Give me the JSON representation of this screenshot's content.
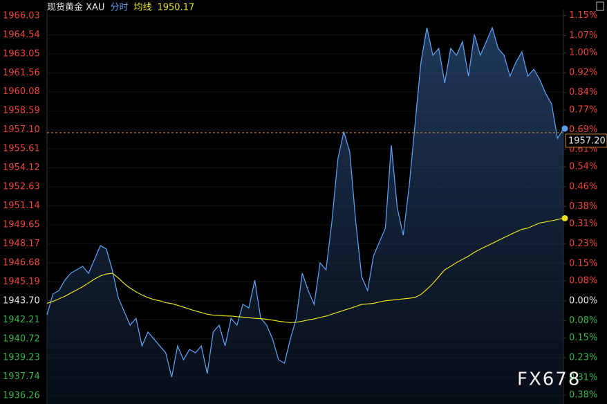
{
  "chart_data": {
    "type": "line",
    "title": "现货黄金 XAU",
    "series": [
      {
        "name": "分时",
        "color": "#5b9ef0",
        "values": [
          1942.6,
          1944.23,
          1944.5,
          1945.31,
          1945.86,
          1946.13,
          1946.4,
          1945.86,
          1946.94,
          1948.03,
          1947.75,
          1946.13,
          1943.96,
          1942.87,
          1941.79,
          1942.33,
          1940.16,
          1941.25,
          1940.7,
          1940.16,
          1939.62,
          1937.72,
          1940.16,
          1939.08,
          1939.89,
          1939.62,
          1940.16,
          1937.99,
          1941.25,
          1941.79,
          1940.16,
          1942.33,
          1941.79,
          1943.42,
          1943.14,
          1945.31,
          1942.33,
          1941.79,
          1940.7,
          1939.08,
          1938.81,
          1940.7,
          1942.33,
          1945.86,
          1944.5,
          1943.42,
          1946.67,
          1946.13,
          1949.92,
          1954.8,
          1956.97,
          1955.35,
          1949.92,
          1945.59,
          1944.5,
          1947.21,
          1948.3,
          1949.38,
          1955.89,
          1951.01,
          1948.84,
          1952.64,
          1957.52,
          1962.4,
          1965.11,
          1962.94,
          1963.48,
          1960.77,
          1963.48,
          1962.94,
          1964.02,
          1961.31,
          1964.57,
          1962.94,
          1964.02,
          1965.11,
          1963.48,
          1962.94,
          1961.31,
          1962.4,
          1963.21,
          1961.31,
          1961.85,
          1961.04,
          1959.96,
          1959.14,
          1956.43,
          1957.2
        ]
      },
      {
        "name": "均线",
        "color": "#e8e020",
        "values": [
          1943.5,
          1943.65,
          1943.85,
          1944.05,
          1944.3,
          1944.55,
          1944.8,
          1945.1,
          1945.4,
          1945.65,
          1945.8,
          1945.86,
          1945.5,
          1945.05,
          1944.7,
          1944.4,
          1944.15,
          1943.95,
          1943.8,
          1943.7,
          1943.55,
          1943.48,
          1943.35,
          1943.2,
          1943.05,
          1942.9,
          1942.78,
          1942.65,
          1942.58,
          1942.55,
          1942.52,
          1942.5,
          1942.45,
          1942.42,
          1942.38,
          1942.33,
          1942.3,
          1942.25,
          1942.18,
          1942.1,
          1942.04,
          1941.99,
          1942.02,
          1942.1,
          1942.2,
          1942.28,
          1942.4,
          1942.5,
          1942.65,
          1942.8,
          1942.95,
          1943.1,
          1943.25,
          1943.42,
          1943.45,
          1943.5,
          1943.6,
          1943.7,
          1943.75,
          1943.8,
          1943.85,
          1943.9,
          1943.96,
          1944.2,
          1944.6,
          1945.05,
          1945.6,
          1946.13,
          1946.4,
          1946.7,
          1946.95,
          1947.2,
          1947.5,
          1947.75,
          1947.98,
          1948.2,
          1948.43,
          1948.65,
          1948.88,
          1949.1,
          1949.3,
          1949.4,
          1949.6,
          1949.8,
          1949.88,
          1949.97,
          1950.07,
          1950.17
        ]
      }
    ],
    "ylim": [
      1936.26,
      1966.03
    ],
    "yticks": [
      1966.03,
      1964.54,
      1963.05,
      1961.56,
      1960.08,
      1958.59,
      {
        "value": 1957.1,
        "label": "1957.10"
      },
      1955.61,
      1954.12,
      1952.63,
      1951.14,
      1949.65,
      1948.17,
      1946.68,
      1945.19,
      {
        "value": 1943.7,
        "label": "1943.70"
      },
      1942.21,
      1940.72,
      1939.23,
      1937.74,
      1936.26
    ],
    "y2lim": [
      -0.383,
      1.149
    ],
    "y2ticks": [
      {
        "value": 1.15,
        "label": "1.15%"
      },
      {
        "value": 1.07,
        "label": "1.07%"
      },
      {
        "value": 1,
        "label": "1.00%"
      },
      {
        "value": 0.92,
        "label": "0.92%"
      },
      {
        "value": 0.84,
        "label": "0.84%"
      },
      {
        "value": 0.77,
        "label": "0.77%"
      },
      {
        "value": 0.69,
        "label": "0.69%"
      },
      {
        "value": 0.61,
        "label": "0.61%"
      },
      {
        "value": 0.54,
        "label": "0.54%"
      },
      {
        "value": 0.46,
        "label": "0.46%"
      },
      {
        "value": 0.38,
        "label": "0.38%"
      },
      {
        "value": 0.31,
        "label": "0.31%"
      },
      {
        "value": 0.23,
        "label": "0.23%"
      },
      {
        "value": 0.15,
        "label": "0.15%"
      },
      {
        "value": 0.08,
        "label": "0.08%"
      },
      {
        "value": 0,
        "label": "0.00%"
      },
      {
        "value": -0.08,
        "label": "0.08%"
      },
      {
        "value": -0.15,
        "label": "0.15%"
      },
      {
        "value": -0.23,
        "label": "0.23%"
      },
      {
        "value": -0.31,
        "label": "0.31%"
      },
      {
        "value": -0.38,
        "label": "0.38%"
      }
    ],
    "current_price": {
      "value": 1957.2,
      "label": "1957.20"
    },
    "up_color": "#e8433a",
    "down_color": "#35b44a",
    "neutral_color": "#e6e6e6",
    "grid": true,
    "watermark": "FX678"
  }
}
